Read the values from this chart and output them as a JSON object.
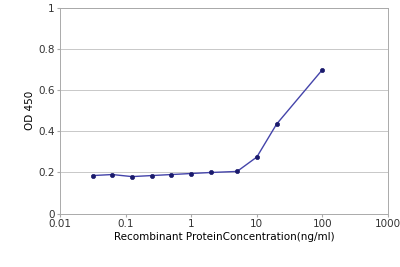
{
  "x_values": [
    0.0313,
    0.0625,
    0.125,
    0.25,
    0.5,
    1.0,
    2.0,
    5.0,
    10.0,
    20.0,
    100.0
  ],
  "y_values": [
    0.185,
    0.19,
    0.18,
    0.185,
    0.19,
    0.195,
    0.2,
    0.205,
    0.275,
    0.435,
    0.7
  ],
  "line_color": "#4444aa",
  "marker_color": "#1a1a6c",
  "marker_style": "o",
  "marker_size": 3,
  "line_width": 1.0,
  "xlabel": "Recombinant ProteinConcentration(ng/ml)",
  "ylabel": "OD 450",
  "xlim_log": [
    0.01,
    1000
  ],
  "ylim": [
    0,
    1
  ],
  "yticks": [
    0,
    0.2,
    0.4,
    0.6,
    0.8,
    1
  ],
  "ytick_labels": [
    "0",
    "0.2",
    "0.4",
    "0.6",
    "0.8",
    "1"
  ],
  "xtick_positions": [
    0.01,
    0.1,
    1,
    10,
    100,
    1000
  ],
  "xtick_labels": [
    "0.01",
    "0.1",
    "1",
    "10",
    "100",
    "1000"
  ],
  "background_color": "#ffffff",
  "grid_color": "#c8c8c8",
  "xlabel_fontsize": 7.5,
  "ylabel_fontsize": 7.5,
  "tick_fontsize": 7.5,
  "spine_color": "#aaaaaa"
}
